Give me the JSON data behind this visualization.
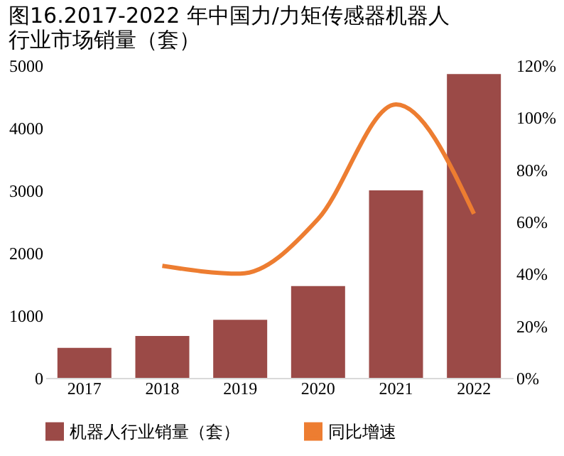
{
  "chart_data": {
    "type": "bar",
    "title": "图16.2017-2022 年中国力/力矩传感器机器人行业市场销量（套）",
    "categories": [
      "2017",
      "2018",
      "2019",
      "2020",
      "2021",
      "2022"
    ],
    "series": [
      {
        "name": "机器人行业销量（套）",
        "color": "#9b4a47",
        "values": [
          480,
          670,
          930,
          1470,
          3000,
          4860
        ]
      },
      {
        "name": "同比增速",
        "type": "line",
        "axis": "y2",
        "color": "#ed7d31",
        "values": [
          null,
          43,
          40,
          61,
          105,
          63
        ]
      }
    ],
    "ylim": [
      0,
      5000
    ],
    "yticks": [
      0,
      1000,
      2000,
      3000,
      4000,
      5000
    ],
    "y2lim": [
      0,
      120
    ],
    "y2ticks": [
      {
        "value": 0,
        "label": "0%"
      },
      {
        "value": 20,
        "label": "20%"
      },
      {
        "value": 40,
        "label": "40%"
      },
      {
        "value": 60,
        "label": "60%"
      },
      {
        "value": 80,
        "label": "80%"
      },
      {
        "value": 100,
        "label": "100%"
      },
      {
        "value": 120,
        "label": "120%"
      }
    ],
    "grid": false,
    "legend": "bottom",
    "line_style": "solid",
    "marker": "none"
  }
}
